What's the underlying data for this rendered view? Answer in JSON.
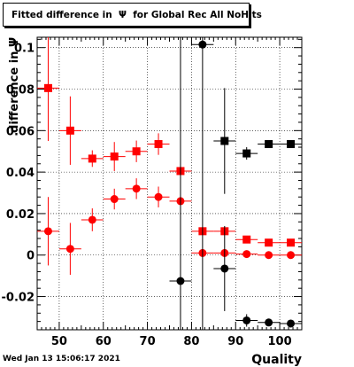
{
  "chart_data": {
    "type": "scatter",
    "title": "Fitted difference in  Ψ  for Global Rec All NoHits",
    "xlabel": "Quality",
    "ylabel": "difference in  Ψ",
    "xlim": [
      45,
      105
    ],
    "ylim": [
      -0.036,
      0.105
    ],
    "xticks": [
      50,
      60,
      70,
      80,
      90,
      100
    ],
    "yticks": [
      -0.02,
      0,
      0.02,
      0.04,
      0.06,
      0.08,
      0.1
    ],
    "grid": true,
    "series": [
      {
        "marker": "square",
        "color": "#ff0000",
        "points": [
          {
            "x": 47.5,
            "y": 0.0805,
            "xerr": 2.5,
            "yerr": 0.0255
          },
          {
            "x": 52.5,
            "y": 0.06,
            "xerr": 2.5,
            "yerr": 0.0165
          },
          {
            "x": 57.5,
            "y": 0.0465,
            "xerr": 2.5,
            "yerr": 0.004
          },
          {
            "x": 62.5,
            "y": 0.0475,
            "xerr": 2.5,
            "yerr": 0.007
          },
          {
            "x": 67.5,
            "y": 0.05,
            "xerr": 2.5,
            "yerr": 0.0052
          },
          {
            "x": 72.5,
            "y": 0.0535,
            "xerr": 2.5,
            "yerr": 0.0052
          },
          {
            "x": 77.5,
            "y": 0.0405,
            "xerr": 2.5,
            "yerr": 0.001
          },
          {
            "x": 82.5,
            "y": 0.0115,
            "xerr": 2.5,
            "yerr": 0.0005
          },
          {
            "x": 87.5,
            "y": 0.0115,
            "xerr": 2.5,
            "yerr": 0.0005
          },
          {
            "x": 92.5,
            "y": 0.0075,
            "xerr": 2.5,
            "yerr": 0.0003
          },
          {
            "x": 97.5,
            "y": 0.006,
            "xerr": 2.5,
            "yerr": 0.0003
          },
          {
            "x": 102.5,
            "y": 0.006,
            "xerr": 2.5,
            "yerr": 0.0003
          }
        ]
      },
      {
        "marker": "circle",
        "color": "#ff0000",
        "points": [
          {
            "x": 47.5,
            "y": 0.0115,
            "xerr": 2.5,
            "yerr": 0.0165
          },
          {
            "x": 52.5,
            "y": 0.003,
            "xerr": 2.5,
            "yerr": 0.0125
          },
          {
            "x": 57.5,
            "y": 0.017,
            "xerr": 2.5,
            "yerr": 0.0055
          },
          {
            "x": 62.5,
            "y": 0.027,
            "xerr": 2.5,
            "yerr": 0.005
          },
          {
            "x": 67.5,
            "y": 0.032,
            "xerr": 2.5,
            "yerr": 0.005
          },
          {
            "x": 72.5,
            "y": 0.028,
            "xerr": 2.5,
            "yerr": 0.005
          },
          {
            "x": 77.5,
            "y": 0.026,
            "xerr": 2.5,
            "yerr": 0.001
          },
          {
            "x": 82.5,
            "y": 0.001,
            "xerr": 2.5,
            "yerr": 0.0003
          },
          {
            "x": 87.5,
            "y": 0.001,
            "xerr": 2.5,
            "yerr": 0.0003
          },
          {
            "x": 92.5,
            "y": 0.0005,
            "xerr": 2.5,
            "yerr": 0.0002
          },
          {
            "x": 97.5,
            "y": 0.0,
            "xerr": 2.5,
            "yerr": 0.0002
          },
          {
            "x": 102.5,
            "y": 0.0,
            "xerr": 2.5,
            "yerr": 0.0002
          }
        ]
      },
      {
        "marker": "square",
        "color": "#000000",
        "points": [
          {
            "x": 87.5,
            "y": 0.055,
            "xerr": 2.5,
            "yerr": 0.0255
          },
          {
            "x": 92.5,
            "y": 0.049,
            "xerr": 2.5,
            "yerr": 0.003
          },
          {
            "x": 97.5,
            "y": 0.0535,
            "xerr": 2.5,
            "yerr": 0.0005
          },
          {
            "x": 102.5,
            "y": 0.0535,
            "xerr": 2.5,
            "yerr": 0.0005
          }
        ]
      },
      {
        "marker": "circle",
        "color": "#000000",
        "points": [
          {
            "x": 77.5,
            "y": -0.0125,
            "xerr": 2.5,
            "yerr": 0.15
          },
          {
            "x": 82.5,
            "y": 0.1015,
            "xerr": 2.5,
            "yerr": 0.15
          },
          {
            "x": 87.5,
            "y": -0.0065,
            "xerr": 2.5,
            "yerr": 0.0205
          },
          {
            "x": 92.5,
            "y": -0.0315,
            "xerr": 2.5,
            "yerr": 0.003
          },
          {
            "x": 97.5,
            "y": -0.0325,
            "xerr": 2.5,
            "yerr": 0.0005
          },
          {
            "x": 102.5,
            "y": -0.033,
            "xerr": 2.5,
            "yerr": 0.0005
          }
        ]
      }
    ]
  },
  "footer": {
    "timestamp": "Wed Jan 13 15:06:17 2021"
  }
}
